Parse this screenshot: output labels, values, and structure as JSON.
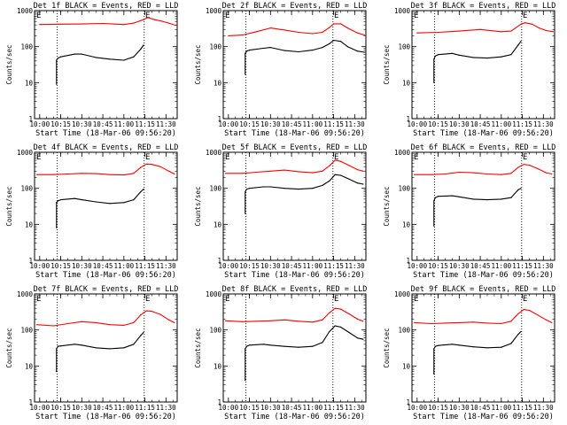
{
  "chart_data": [
    {
      "type": "line",
      "title": "Det 1f BLACK = Events, RED = LLD",
      "xlabel": "Start Time (18-Mar-06 09:56:20)",
      "ylabel": "Counts/sec",
      "yscale": "log",
      "ylim": [
        1,
        1000
      ],
      "xlim": [
        "09:56:20",
        "11:38:00"
      ],
      "x_ticks": [
        "10:00",
        "10:15",
        "10:30",
        "10:45",
        "11:00",
        "11:15",
        "11:30"
      ],
      "y_ticks": [
        "1",
        "10",
        "100",
        "1000"
      ],
      "markers": [
        {
          "label": "E",
          "time": "11:17:00"
        }
      ],
      "vlines": [
        "10:12:30",
        "11:14:30"
      ],
      "series": [
        {
          "color": "#ff0000",
          "x": [
            "10:00",
            "10:15",
            "10:30",
            "10:45",
            "11:00",
            "11:07",
            "11:14",
            "11:17",
            "11:22",
            "11:27",
            "11:32",
            "11:37"
          ],
          "values": [
            410,
            420,
            425,
            440,
            410,
            450,
            560,
            640,
            560,
            510,
            450,
            390
          ]
        },
        {
          "color": "#000000",
          "x": [
            "10:12",
            "10:12",
            "10:13",
            "10:15",
            "10:25",
            "10:30",
            "10:40",
            "10:50",
            "11:00",
            "11:07",
            "11:12",
            "11:14"
          ],
          "values": [
            9,
            42,
            48,
            52,
            62,
            62,
            50,
            45,
            42,
            52,
            85,
            110
          ]
        }
      ]
    },
    {
      "type": "line",
      "title": "Det 2f BLACK = Events, RED = LLD",
      "xlabel": "Start Time (18-Mar-06 09:56:20)",
      "ylabel": "Counts/sec",
      "yscale": "log",
      "ylim": [
        1,
        1000
      ],
      "xlim": [
        "09:56:20",
        "11:38:00"
      ],
      "x_ticks": [
        "10:00",
        "10:15",
        "10:30",
        "10:45",
        "11:00",
        "11:15",
        "11:30"
      ],
      "y_ticks": [
        "1",
        "10",
        "100",
        "1000"
      ],
      "markers": [
        {
          "label": "E",
          "time": "11:17:00"
        }
      ],
      "vlines": [
        "10:12:30",
        "11:14:30"
      ],
      "series": [
        {
          "color": "#ff0000",
          "x": [
            "10:00",
            "10:10",
            "10:20",
            "10:30",
            "10:40",
            "10:50",
            "11:00",
            "11:07",
            "11:12",
            "11:15",
            "11:20",
            "11:25",
            "11:32",
            "11:37"
          ],
          "values": [
            200,
            210,
            260,
            330,
            290,
            250,
            230,
            250,
            340,
            430,
            430,
            330,
            240,
            210
          ]
        },
        {
          "color": "#000000",
          "x": [
            "10:12",
            "10:12",
            "10:13",
            "10:15",
            "10:25",
            "10:30",
            "10:40",
            "10:50",
            "11:00",
            "11:07",
            "11:12",
            "11:15",
            "11:20",
            "11:25",
            "11:32",
            "11:37"
          ],
          "values": [
            17,
            65,
            75,
            80,
            90,
            95,
            78,
            72,
            80,
            95,
            120,
            150,
            140,
            100,
            75,
            70
          ]
        }
      ]
    },
    {
      "type": "line",
      "title": "Det 3f BLACK = Events, RED = LLD",
      "xlabel": "Start Time (18-Mar-06 09:56:20)",
      "ylabel": "Counts/sec",
      "yscale": "log",
      "ylim": [
        1,
        1000
      ],
      "xlim": [
        "09:56:20",
        "11:38:00"
      ],
      "x_ticks": [
        "10:00",
        "10:15",
        "10:30",
        "10:45",
        "11:00",
        "11:15",
        "11:30"
      ],
      "y_ticks": [
        "1",
        "10",
        "100",
        "1000"
      ],
      "markers": [
        {
          "label": "E",
          "time": "11:17:00"
        }
      ],
      "vlines": [
        "10:12:30",
        "11:14:30"
      ],
      "series": [
        {
          "color": "#ff0000",
          "x": [
            "10:00",
            "10:15",
            "10:30",
            "10:45",
            "11:00",
            "11:07",
            "11:14",
            "11:17",
            "11:22",
            "11:27",
            "11:32",
            "11:37"
          ],
          "values": [
            240,
            250,
            270,
            300,
            260,
            270,
            420,
            460,
            420,
            330,
            280,
            260
          ]
        },
        {
          "color": "#000000",
          "x": [
            "10:12",
            "10:12",
            "10:13",
            "10:15",
            "10:25",
            "10:30",
            "10:40",
            "10:50",
            "11:00",
            "11:07",
            "11:12",
            "11:14"
          ],
          "values": [
            10,
            45,
            55,
            60,
            65,
            58,
            50,
            48,
            52,
            60,
            110,
            140
          ]
        }
      ]
    },
    {
      "type": "line",
      "title": "Det 4f BLACK = Events, RED = LLD",
      "xlabel": "Start Time (18-Mar-06 09:56:20)",
      "ylabel": "Counts/sec",
      "yscale": "log",
      "ylim": [
        1,
        1000
      ],
      "xlim": [
        "09:56:20",
        "11:38:00"
      ],
      "x_ticks": [
        "10:00",
        "10:15",
        "10:30",
        "10:45",
        "11:00",
        "11:15",
        "11:30"
      ],
      "y_ticks": [
        "1",
        "10",
        "100",
        "1000"
      ],
      "markers": [
        {
          "label": "E",
          "time": "11:17:00"
        }
      ],
      "vlines": [
        "10:12:30",
        "11:14:30"
      ],
      "series": [
        {
          "color": "#ff0000",
          "x": [
            "09:58",
            "10:10",
            "10:20",
            "10:30",
            "10:40",
            "10:50",
            "11:00",
            "11:07",
            "11:12",
            "11:16",
            "11:20",
            "11:26",
            "11:32",
            "11:36"
          ],
          "values": [
            240,
            240,
            250,
            260,
            255,
            240,
            235,
            260,
            380,
            470,
            460,
            400,
            300,
            250
          ]
        },
        {
          "color": "#000000",
          "x": [
            "10:12",
            "10:12",
            "10:13",
            "10:15",
            "10:25",
            "10:30",
            "10:40",
            "10:50",
            "11:00",
            "11:07",
            "11:12",
            "11:14"
          ],
          "values": [
            8,
            40,
            45,
            48,
            52,
            48,
            42,
            38,
            40,
            48,
            80,
            95
          ]
        }
      ]
    },
    {
      "type": "line",
      "title": "Det 5f BLACK = Events, RED = LLD",
      "xlabel": "Start Time (18-Mar-06 09:56:20)",
      "ylabel": "Counts/sec",
      "yscale": "log",
      "ylim": [
        1,
        1000
      ],
      "xlim": [
        "09:56:20",
        "11:38:00"
      ],
      "x_ticks": [
        "10:00",
        "10:15",
        "10:30",
        "10:45",
        "11:00",
        "11:15",
        "11:30"
      ],
      "y_ticks": [
        "1",
        "10",
        "100",
        "1000"
      ],
      "markers": [
        {
          "label": "E",
          "time": "11:17:00"
        }
      ],
      "vlines": [
        "10:12:30",
        "11:14:30"
      ],
      "series": [
        {
          "color": "#ff0000",
          "x": [
            "09:58",
            "10:10",
            "10:20",
            "10:30",
            "10:40",
            "10:50",
            "11:00",
            "11:07",
            "11:12",
            "11:16",
            "11:20",
            "11:26",
            "11:32",
            "11:36"
          ],
          "values": [
            260,
            260,
            280,
            300,
            320,
            290,
            270,
            300,
            420,
            600,
            560,
            430,
            330,
            300
          ]
        },
        {
          "color": "#000000",
          "x": [
            "10:12",
            "10:12",
            "10:13",
            "10:15",
            "10:25",
            "10:30",
            "10:40",
            "10:50",
            "11:00",
            "11:07",
            "11:12",
            "11:16",
            "11:20",
            "11:26",
            "11:32",
            "11:36"
          ],
          "values": [
            20,
            80,
            95,
            100,
            110,
            110,
            100,
            95,
            100,
            120,
            160,
            240,
            230,
            180,
            140,
            130
          ]
        }
      ]
    },
    {
      "type": "line",
      "title": "Det 6f BLACK = Events, RED = LLD",
      "xlabel": "Start Time (18-Mar-06 09:56:20)",
      "ylabel": "Counts/sec",
      "yscale": "log",
      "ylim": [
        1,
        1000
      ],
      "xlim": [
        "09:56:20",
        "11:38:00"
      ],
      "x_ticks": [
        "10:00",
        "10:15",
        "10:30",
        "10:45",
        "11:00",
        "11:15",
        "11:30"
      ],
      "y_ticks": [
        "1",
        "10",
        "100",
        "1000"
      ],
      "markers": [
        {
          "label": "E",
          "time": "11:17:00"
        }
      ],
      "vlines": [
        "10:12:30",
        "11:14:30"
      ],
      "series": [
        {
          "color": "#ff0000",
          "x": [
            "09:58",
            "10:10",
            "10:20",
            "10:30",
            "10:40",
            "10:50",
            "11:00",
            "11:07",
            "11:12",
            "11:16",
            "11:20",
            "11:26",
            "11:32",
            "11:36"
          ],
          "values": [
            240,
            240,
            250,
            280,
            270,
            250,
            240,
            260,
            380,
            460,
            440,
            350,
            270,
            250
          ]
        },
        {
          "color": "#000000",
          "x": [
            "10:12",
            "10:12",
            "10:13",
            "10:15",
            "10:25",
            "10:30",
            "10:40",
            "10:50",
            "11:00",
            "11:07",
            "11:12",
            "11:14"
          ],
          "values": [
            9,
            45,
            55,
            60,
            62,
            58,
            50,
            48,
            50,
            55,
            90,
            100
          ]
        }
      ]
    },
    {
      "type": "line",
      "title": "Det 7f BLACK = Events, RED = LLD",
      "xlabel": "Start Time (18-Mar-06 09:56:20)",
      "ylabel": "Counts/sec",
      "yscale": "log",
      "ylim": [
        1,
        1000
      ],
      "xlim": [
        "09:56:20",
        "11:38:00"
      ],
      "x_ticks": [
        "10:00",
        "10:15",
        "10:30",
        "10:45",
        "11:00",
        "11:15",
        "11:30"
      ],
      "y_ticks": [
        "1",
        "10",
        "100",
        "1000"
      ],
      "markers": [
        {
          "label": "E",
          "time": "11:17:00"
        }
      ],
      "vlines": [
        "10:12:30",
        "11:14:30"
      ],
      "series": [
        {
          "color": "#ff0000",
          "x": [
            "09:58",
            "10:10",
            "10:20",
            "10:30",
            "10:40",
            "10:50",
            "11:00",
            "11:07",
            "11:12",
            "11:16",
            "11:20",
            "11:26",
            "11:32",
            "11:36"
          ],
          "values": [
            140,
            130,
            150,
            170,
            160,
            140,
            135,
            160,
            260,
            340,
            330,
            270,
            190,
            160
          ]
        },
        {
          "color": "#000000",
          "x": [
            "10:12",
            "10:12",
            "10:13",
            "10:15",
            "10:25",
            "10:30",
            "10:40",
            "10:50",
            "11:00",
            "11:07",
            "11:12",
            "11:14"
          ],
          "values": [
            7,
            30,
            35,
            36,
            40,
            38,
            32,
            30,
            32,
            40,
            70,
            85
          ]
        }
      ]
    },
    {
      "type": "line",
      "title": "Det 8f BLACK = Events, RED = LLD",
      "xlabel": "Start Time (18-Mar-06 09:56:20)",
      "ylabel": "Counts/sec",
      "yscale": "log",
      "ylim": [
        1,
        1000
      ],
      "xlim": [
        "09:56:20",
        "11:38:00"
      ],
      "x_ticks": [
        "10:00",
        "10:15",
        "10:30",
        "10:45",
        "11:00",
        "11:15",
        "11:30"
      ],
      "y_ticks": [
        "1",
        "10",
        "100",
        "1000"
      ],
      "markers": [
        {
          "label": "E",
          "time": "11:17:00"
        }
      ],
      "vlines": [
        "10:12:30",
        "11:14:30"
      ],
      "series": [
        {
          "color": "#ff0000",
          "x": [
            "09:58",
            "10:10",
            "10:20",
            "10:30",
            "10:40",
            "10:50",
            "11:00",
            "11:07",
            "11:12",
            "11:16",
            "11:20",
            "11:26",
            "11:32",
            "11:36"
          ],
          "values": [
            180,
            170,
            175,
            180,
            190,
            175,
            165,
            190,
            300,
            400,
            380,
            280,
            200,
            175
          ]
        },
        {
          "color": "#000000",
          "x": [
            "10:12",
            "10:12",
            "10:13",
            "10:15",
            "10:25",
            "10:30",
            "10:40",
            "10:50",
            "11:00",
            "11:07",
            "11:12",
            "11:16",
            "11:20",
            "11:26",
            "11:32",
            "11:36"
          ],
          "values": [
            4,
            30,
            35,
            38,
            40,
            38,
            35,
            33,
            35,
            45,
            90,
            130,
            120,
            85,
            60,
            55
          ]
        }
      ]
    },
    {
      "type": "line",
      "title": "Det 9f BLACK = Events, RED = LLD",
      "xlabel": "Start Time (18-Mar-06 09:56:20)",
      "ylabel": "Counts/sec",
      "yscale": "log",
      "ylim": [
        1,
        1000
      ],
      "xlim": [
        "09:56:20",
        "11:38:00"
      ],
      "x_ticks": [
        "10:00",
        "10:15",
        "10:30",
        "10:45",
        "11:00",
        "11:15",
        "11:30"
      ],
      "y_ticks": [
        "1",
        "10",
        "100",
        "1000"
      ],
      "markers": [
        {
          "label": "E",
          "time": "11:17:00"
        }
      ],
      "vlines": [
        "10:12:30",
        "11:14:30"
      ],
      "series": [
        {
          "color": "#ff0000",
          "x": [
            "09:58",
            "10:10",
            "10:20",
            "10:30",
            "10:40",
            "10:50",
            "11:00",
            "11:07",
            "11:12",
            "11:16",
            "11:20",
            "11:26",
            "11:32",
            "11:36"
          ],
          "values": [
            160,
            150,
            155,
            160,
            165,
            155,
            150,
            175,
            280,
            370,
            350,
            260,
            190,
            160
          ]
        },
        {
          "color": "#000000",
          "x": [
            "10:12",
            "10:12",
            "10:13",
            "10:15",
            "10:25",
            "10:30",
            "10:40",
            "10:50",
            "11:00",
            "11:07",
            "11:12",
            "11:14"
          ],
          "values": [
            6,
            30,
            35,
            37,
            40,
            38,
            34,
            32,
            33,
            42,
            75,
            90
          ]
        }
      ]
    }
  ]
}
